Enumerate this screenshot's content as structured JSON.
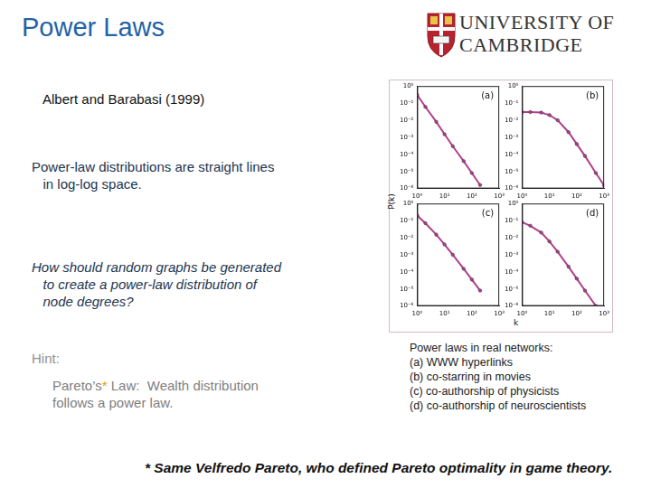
{
  "slide": {
    "title": "Power Laws",
    "logo": [
      "UNIVERSITY OF",
      "CAMBRIDGE"
    ],
    "citation": "Albert and Barabasi (1999)",
    "statement": [
      "Power-law distributions are straight lines",
      "   in log-log space."
    ],
    "question": [
      "How should random graphs be generated",
      "   to create a power-law distribution of",
      "   node degrees?"
    ],
    "hint": "Hint:",
    "hint_text": {
      "name": "Pareto’s",
      "mark": "*",
      "lines": [
        " Law:  Wealth distribution",
        "follows a power law."
      ]
    },
    "caption": [
      "Power laws in real networks:",
      "(a) WWW hyperlinks",
      "(b) co-starring in movies",
      "(c) co-authorship of physicists",
      "(d) co-authorship of neuroscientists"
    ],
    "footnote": "* Same Velfredo Pareto, who defined Pareto optimality in game theory."
  },
  "figure": {
    "xlabel": "k",
    "ylabel": "P(k)"
  },
  "chart_data": [
    {
      "type": "scatter",
      "title": "(a)",
      "log": true,
      "color": "#b0408c",
      "marker": "circle",
      "line_style": "solid",
      "x": [
        1,
        2,
        5,
        10,
        20,
        50,
        100,
        200
      ],
      "values": [
        0.3,
        0.06,
        0.008,
        0.0015,
        0.0003,
        4e-05,
        8e-06,
        1.6e-06
      ],
      "xlim": [
        1,
        1000
      ],
      "ylim": [
        1e-06,
        1
      ],
      "xticks": [
        {
          "value": 1,
          "label": "10⁰"
        },
        {
          "value": 10,
          "label": "10¹"
        },
        {
          "value": 100,
          "label": "10²"
        },
        {
          "value": 1000,
          "label": "10³"
        }
      ],
      "yticks": [
        {
          "value": 1,
          "label": "10⁰"
        },
        {
          "value": 0.1,
          "label": "10⁻¹"
        },
        {
          "value": 0.01,
          "label": "10⁻²"
        },
        {
          "value": 0.001,
          "label": "10⁻³"
        },
        {
          "value": 0.0001,
          "label": "10⁻⁴"
        },
        {
          "value": 1e-05,
          "label": "10⁻⁵"
        },
        {
          "value": 1e-06,
          "label": "10⁻⁶"
        }
      ]
    },
    {
      "type": "scatter",
      "title": "(b)",
      "log": true,
      "color": "#b0408c",
      "marker": "circle",
      "line_style": "solid",
      "x": [
        1,
        2,
        5,
        10,
        20,
        50,
        100,
        200,
        500,
        1000
      ],
      "values": [
        0.03,
        0.03,
        0.028,
        0.02,
        0.01,
        0.002,
        0.0004,
        8e-05,
        8e-06,
        1.5e-06
      ],
      "xlim": [
        1,
        1000
      ],
      "ylim": [
        1e-06,
        1
      ],
      "xticks": [
        {
          "value": 1,
          "label": "10⁰"
        },
        {
          "value": 10,
          "label": "10¹"
        },
        {
          "value": 100,
          "label": "10²"
        },
        {
          "value": 1000,
          "label": "10³"
        }
      ],
      "yticks": [
        {
          "value": 1,
          "label": "10⁰"
        },
        {
          "value": 0.1,
          "label": "10⁻¹"
        },
        {
          "value": 0.01,
          "label": "10⁻²"
        },
        {
          "value": 0.001,
          "label": "10⁻³"
        },
        {
          "value": 0.0001,
          "label": "10⁻⁴"
        },
        {
          "value": 1e-05,
          "label": "10⁻⁵"
        },
        {
          "value": 1e-06,
          "label": "10⁻⁶"
        }
      ]
    },
    {
      "type": "scatter",
      "title": "(c)",
      "log": true,
      "color": "#b0408c",
      "marker": "circle",
      "line_style": "solid",
      "x": [
        1,
        2,
        5,
        10,
        20,
        50,
        100,
        200
      ],
      "values": [
        0.2,
        0.07,
        0.015,
        0.004,
        0.001,
        0.00015,
        3.5e-05,
        8e-06
      ],
      "xlim": [
        1,
        1000
      ],
      "ylim": [
        1e-06,
        1
      ],
      "xticks": [
        {
          "value": 1,
          "label": "10⁰"
        },
        {
          "value": 10,
          "label": "10¹"
        },
        {
          "value": 100,
          "label": "10²"
        },
        {
          "value": 1000,
          "label": "10³"
        }
      ],
      "yticks": [
        {
          "value": 1,
          "label": "10⁰"
        },
        {
          "value": 0.1,
          "label": "10⁻¹"
        },
        {
          "value": 0.01,
          "label": "10⁻²"
        },
        {
          "value": 0.001,
          "label": "10⁻³"
        },
        {
          "value": 0.0001,
          "label": "10⁻⁴"
        },
        {
          "value": 1e-05,
          "label": "10⁻⁵"
        },
        {
          "value": 1e-06,
          "label": "10⁻⁶"
        }
      ]
    },
    {
      "type": "scatter",
      "title": "(d)",
      "log": true,
      "color": "#b0408c",
      "marker": "circle",
      "line_style": "solid",
      "x": [
        1,
        2,
        5,
        10,
        20,
        50,
        100,
        200,
        500
      ],
      "values": [
        0.08,
        0.05,
        0.02,
        0.006,
        0.0015,
        0.0002,
        4e-05,
        8e-06,
        1e-06
      ],
      "xlim": [
        1,
        1000
      ],
      "ylim": [
        1e-06,
        1
      ],
      "xticks": [
        {
          "value": 1,
          "label": "10⁰"
        },
        {
          "value": 10,
          "label": "10¹"
        },
        {
          "value": 100,
          "label": "10²"
        },
        {
          "value": 1000,
          "label": "10³"
        }
      ],
      "yticks": [
        {
          "value": 1,
          "label": "10⁰"
        },
        {
          "value": 0.1,
          "label": "10⁻¹"
        },
        {
          "value": 0.01,
          "label": "10⁻²"
        },
        {
          "value": 0.001,
          "label": "10⁻³"
        },
        {
          "value": 0.0001,
          "label": "10⁻⁴"
        },
        {
          "value": 1e-05,
          "label": "10⁻⁵"
        },
        {
          "value": 1e-06,
          "label": "10⁻⁶"
        }
      ]
    }
  ]
}
